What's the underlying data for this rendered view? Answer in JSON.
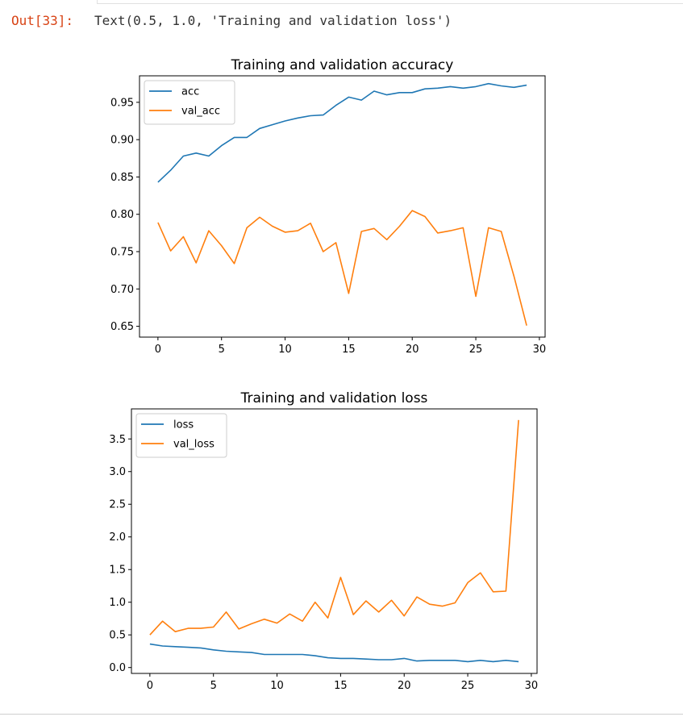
{
  "cell": {
    "prompt": "Out[33]:",
    "output_text": "Text(0.5, 1.0, 'Training and validation loss')"
  },
  "colors": {
    "series_blue": "#1f77b4",
    "series_orange": "#ff7f0e",
    "prompt_red": "#d84315"
  },
  "chart_data": [
    {
      "type": "line",
      "title": "Training and validation accuracy",
      "xlabel": "",
      "ylabel": "",
      "xlim": [
        -1.45,
        30.45
      ],
      "ylim": [
        0.6355,
        0.9855
      ],
      "xticks": [
        0,
        5,
        10,
        15,
        20,
        25,
        30
      ],
      "xtick_labels": [
        "0",
        "5",
        "10",
        "15",
        "20",
        "25",
        "30"
      ],
      "yticks": [
        0.65,
        0.7,
        0.75,
        0.8,
        0.85,
        0.9,
        0.95
      ],
      "ytick_labels": [
        "0.65",
        "0.70",
        "0.75",
        "0.80",
        "0.85",
        "0.90",
        "0.95"
      ],
      "grid": false,
      "legend_position": "upper-left",
      "x": [
        0,
        1,
        2,
        3,
        4,
        5,
        6,
        7,
        8,
        9,
        10,
        11,
        12,
        13,
        14,
        15,
        16,
        17,
        18,
        19,
        20,
        21,
        22,
        23,
        24,
        25,
        26,
        27,
        28,
        29
      ],
      "series": [
        {
          "name": "acc",
          "color": "#1f77b4",
          "values": [
            0.843,
            0.859,
            0.878,
            0.882,
            0.878,
            0.892,
            0.903,
            0.903,
            0.915,
            0.92,
            0.925,
            0.929,
            0.932,
            0.933,
            0.946,
            0.957,
            0.953,
            0.965,
            0.96,
            0.963,
            0.963,
            0.968,
            0.969,
            0.971,
            0.969,
            0.971,
            0.975,
            0.972,
            0.97,
            0.973
          ]
        },
        {
          "name": "val_acc",
          "color": "#ff7f0e",
          "values": [
            0.789,
            0.751,
            0.77,
            0.735,
            0.778,
            0.758,
            0.734,
            0.782,
            0.796,
            0.784,
            0.776,
            0.778,
            0.788,
            0.75,
            0.762,
            0.694,
            0.777,
            0.781,
            0.766,
            0.784,
            0.805,
            0.797,
            0.775,
            0.778,
            0.782,
            0.69,
            0.782,
            0.777,
            0.717,
            0.651
          ]
        }
      ]
    },
    {
      "type": "line",
      "title": "Training and validation loss",
      "xlabel": "",
      "ylabel": "",
      "xlim": [
        -1.45,
        30.45
      ],
      "ylim": [
        -0.09,
        3.96
      ],
      "xticks": [
        0,
        5,
        10,
        15,
        20,
        25,
        30
      ],
      "xtick_labels": [
        "0",
        "5",
        "10",
        "15",
        "20",
        "25",
        "30"
      ],
      "yticks": [
        0.0,
        0.5,
        1.0,
        1.5,
        2.0,
        2.5,
        3.0,
        3.5
      ],
      "ytick_labels": [
        "0.0",
        "0.5",
        "1.0",
        "1.5",
        "2.0",
        "2.5",
        "3.0",
        "3.5"
      ],
      "grid": false,
      "legend_position": "upper-left",
      "x": [
        0,
        1,
        2,
        3,
        4,
        5,
        6,
        7,
        8,
        9,
        10,
        11,
        12,
        13,
        14,
        15,
        16,
        17,
        18,
        19,
        20,
        21,
        22,
        23,
        24,
        25,
        26,
        27,
        28,
        29
      ],
      "series": [
        {
          "name": "loss",
          "color": "#1f77b4",
          "values": [
            0.36,
            0.33,
            0.32,
            0.31,
            0.3,
            0.27,
            0.25,
            0.24,
            0.23,
            0.2,
            0.2,
            0.2,
            0.2,
            0.18,
            0.15,
            0.14,
            0.14,
            0.13,
            0.12,
            0.12,
            0.14,
            0.1,
            0.11,
            0.11,
            0.11,
            0.09,
            0.11,
            0.09,
            0.11,
            0.09
          ]
        },
        {
          "name": "val_loss",
          "color": "#ff7f0e",
          "values": [
            0.5,
            0.71,
            0.55,
            0.6,
            0.6,
            0.62,
            0.85,
            0.59,
            0.67,
            0.74,
            0.68,
            0.82,
            0.71,
            1.0,
            0.76,
            1.38,
            0.81,
            1.02,
            0.85,
            1.03,
            0.79,
            1.08,
            0.97,
            0.94,
            0.99,
            1.3,
            1.45,
            1.16,
            1.17,
            3.79
          ]
        }
      ]
    }
  ]
}
